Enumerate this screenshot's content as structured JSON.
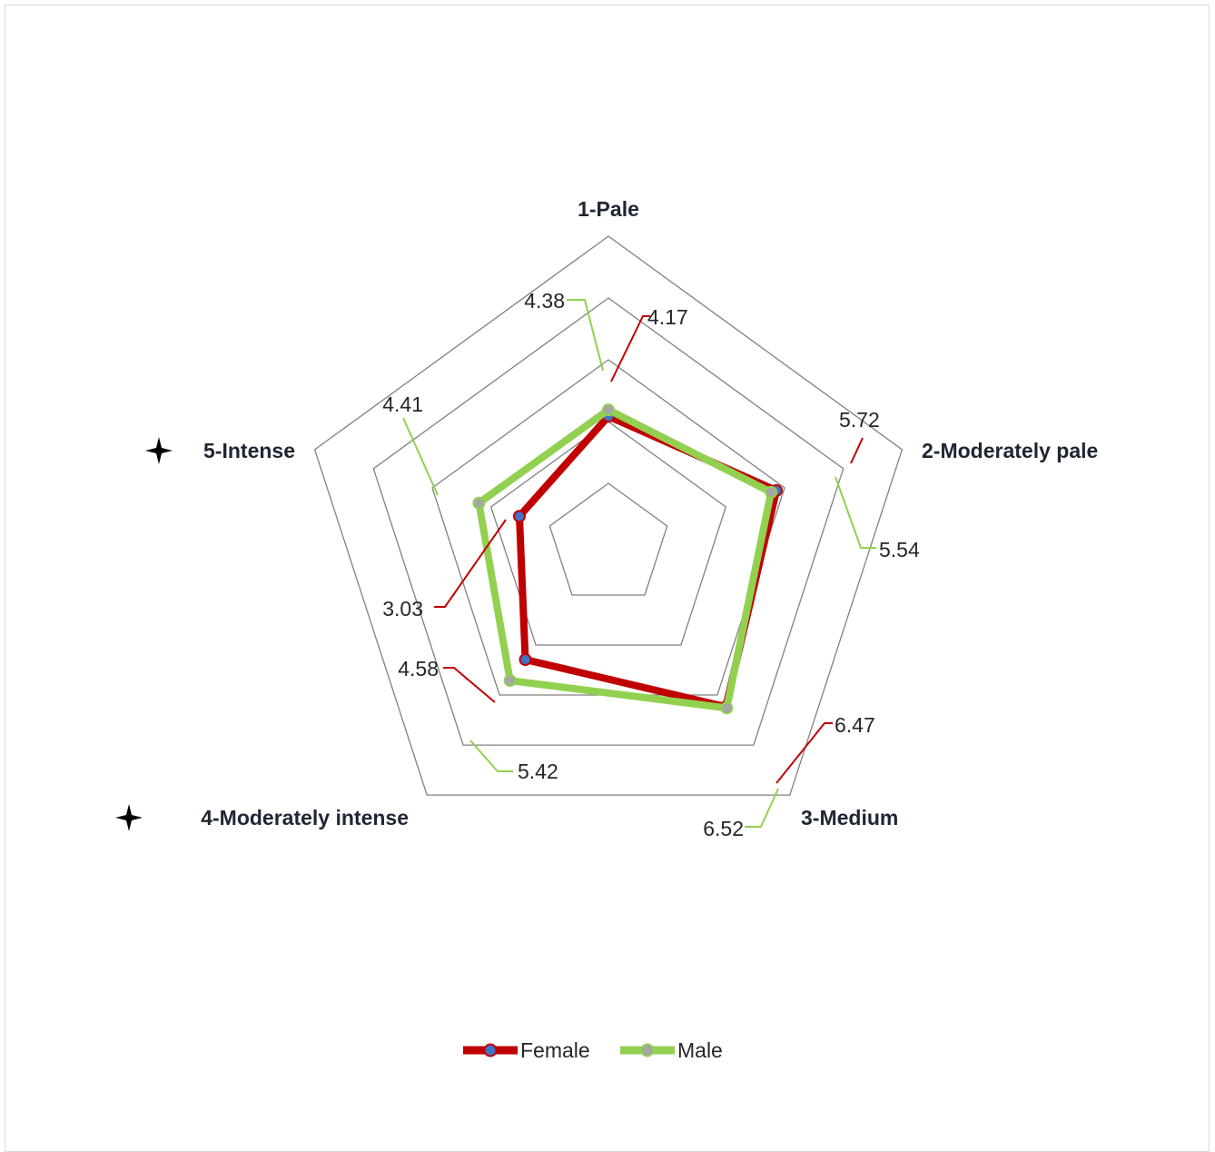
{
  "chart_data": {
    "type": "radar",
    "categories": [
      "1-Pale",
      "2-Moderately pale",
      "3-Medium",
      "4-Moderately intense",
      "5-Intense"
    ],
    "marked_categories": [
      "4-Moderately intense",
      "5-Intense"
    ],
    "marker_icon": "four-point-star-icon",
    "rlim": [
      0,
      10
    ],
    "ring_step": 2,
    "grid": true,
    "legend_position": "bottom",
    "series": [
      {
        "name": "Female",
        "values": [
          4.17,
          5.72,
          6.47,
          4.58,
          3.03
        ],
        "line_color": "#c00000",
        "marker_color": "#4472c4"
      },
      {
        "name": "Male",
        "values": [
          4.38,
          5.54,
          6.52,
          5.42,
          4.41
        ],
        "line_color": "#92d050",
        "marker_color": "#a5a5a5"
      }
    ],
    "data_labels": [
      [
        "4.17",
        "5.72",
        "6.47",
        "4.58",
        "3.03"
      ],
      [
        "4.38",
        "5.54",
        "6.52",
        "5.42",
        "4.41"
      ]
    ]
  }
}
